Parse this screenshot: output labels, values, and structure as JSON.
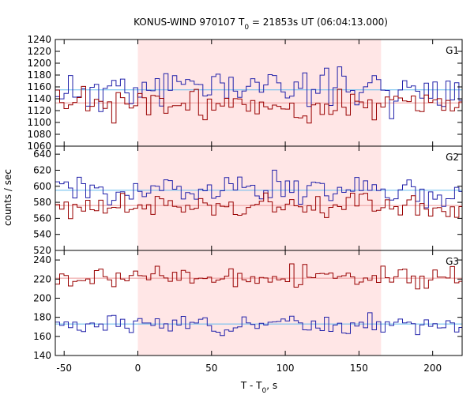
{
  "chart_data": {
    "type": "line",
    "title": {
      "main": "KONUS-WIND 970107 T",
      "sub": "0",
      "rest": " = 21853s UT (06:04:13.000)"
    },
    "xlabel": {
      "main": "T - T",
      "sub": "0",
      "rest": ", s"
    },
    "ylabel": "counts / sec",
    "xlim": [
      -56,
      220
    ],
    "xticks": [
      -50,
      0,
      50,
      100,
      150,
      200
    ],
    "highlight": {
      "x0": 0,
      "x1": 165,
      "color": "#ffe6e6"
    },
    "colors": {
      "blue": "#2222aa",
      "red": "#990000",
      "fit_blue": "#66bbee",
      "fit_red": "#ee9999"
    },
    "panels": [
      {
        "name": "G1",
        "ylim": [
          1060,
          1240
        ],
        "yticks": [
          1060,
          1080,
          1100,
          1120,
          1140,
          1160,
          1180,
          1200,
          1220,
          1240
        ],
        "fits": {
          "blue": 1155,
          "red": 1133
        },
        "series": [
          {
            "name": "",
            "color": "blue",
            "base": 1150,
            "amp": 20,
            "seed": 11
          },
          {
            "name": "",
            "color": "red",
            "base": 1130,
            "amp": 16,
            "seed": 23
          }
        ]
      },
      {
        "name": "G2",
        "ylim": [
          520,
          650
        ],
        "yticks": [
          520,
          540,
          560,
          580,
          600,
          620,
          640
        ],
        "fits": {
          "blue": 595,
          "red": 576
        },
        "series": [
          {
            "name": "",
            "color": "blue",
            "base": 590,
            "amp": 12,
            "seed": 37
          },
          {
            "name": "",
            "color": "red",
            "base": 574,
            "amp": 10,
            "seed": 41
          }
        ]
      },
      {
        "name": "G3",
        "ylim": [
          140,
          250
        ],
        "yticks": [
          140,
          160,
          180,
          200,
          220,
          240
        ],
        "fits": {
          "blue": 173,
          "red": 221
        },
        "series": [
          {
            "name": "",
            "color": "red",
            "base": 222,
            "amp": 7,
            "seed": 53
          },
          {
            "name": "",
            "color": "blue",
            "base": 173,
            "amp": 6,
            "seed": 67
          }
        ]
      }
    ]
  }
}
